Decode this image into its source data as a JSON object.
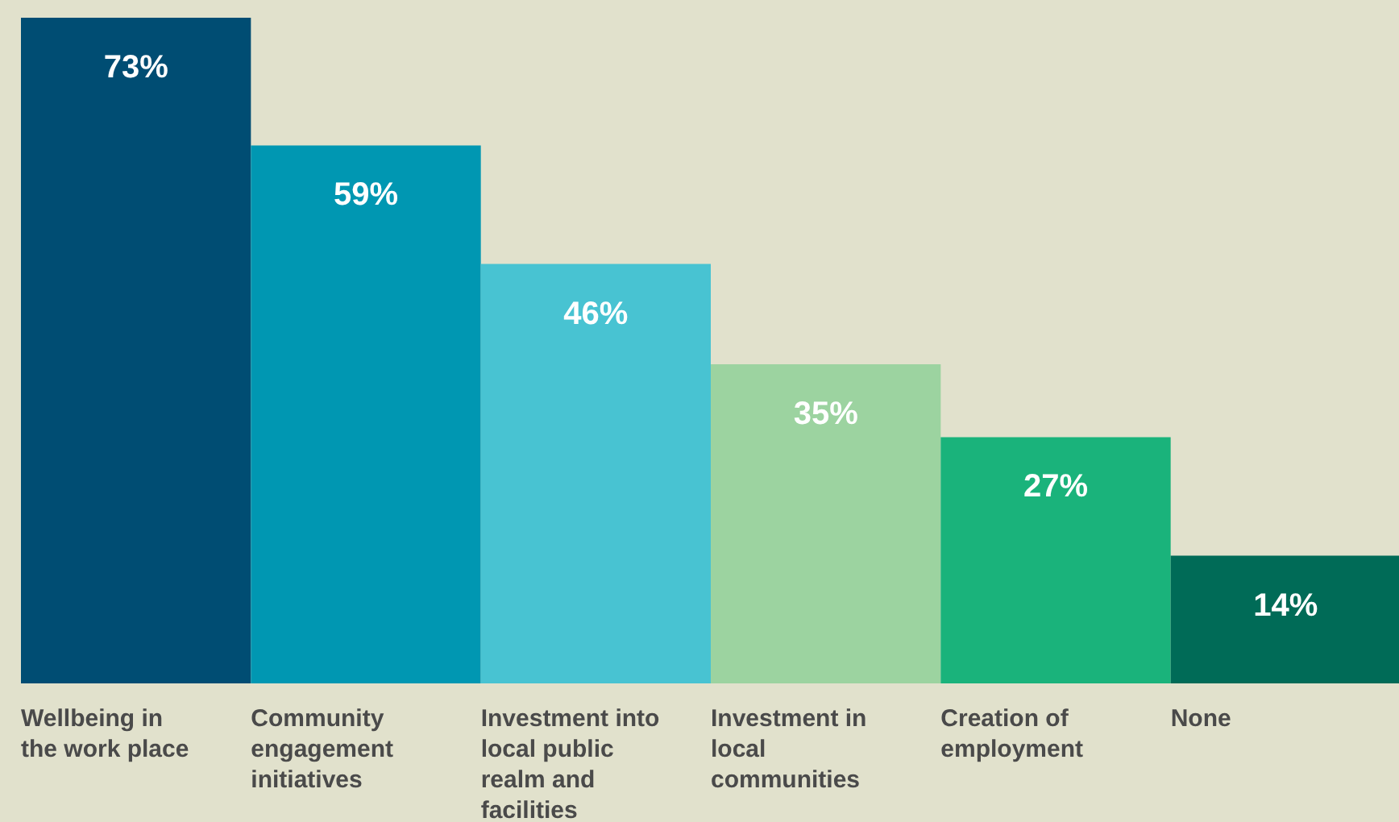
{
  "chart_data": {
    "type": "bar",
    "categories": [
      "Wellbeing in the work place",
      "Community engagement initiatives",
      "Investment into local public realm and facilities",
      "Investment in local communities",
      "Creation of employment",
      "None"
    ],
    "values": [
      73,
      59,
      46,
      35,
      27,
      14
    ],
    "colors": [
      "#004d73",
      "#0097b2",
      "#48c3d2",
      "#9cd3a0",
      "#1ab37b",
      "#006b57"
    ],
    "value_labels": [
      "73%",
      "59%",
      "46%",
      "35%",
      "27%",
      "14%"
    ]
  }
}
